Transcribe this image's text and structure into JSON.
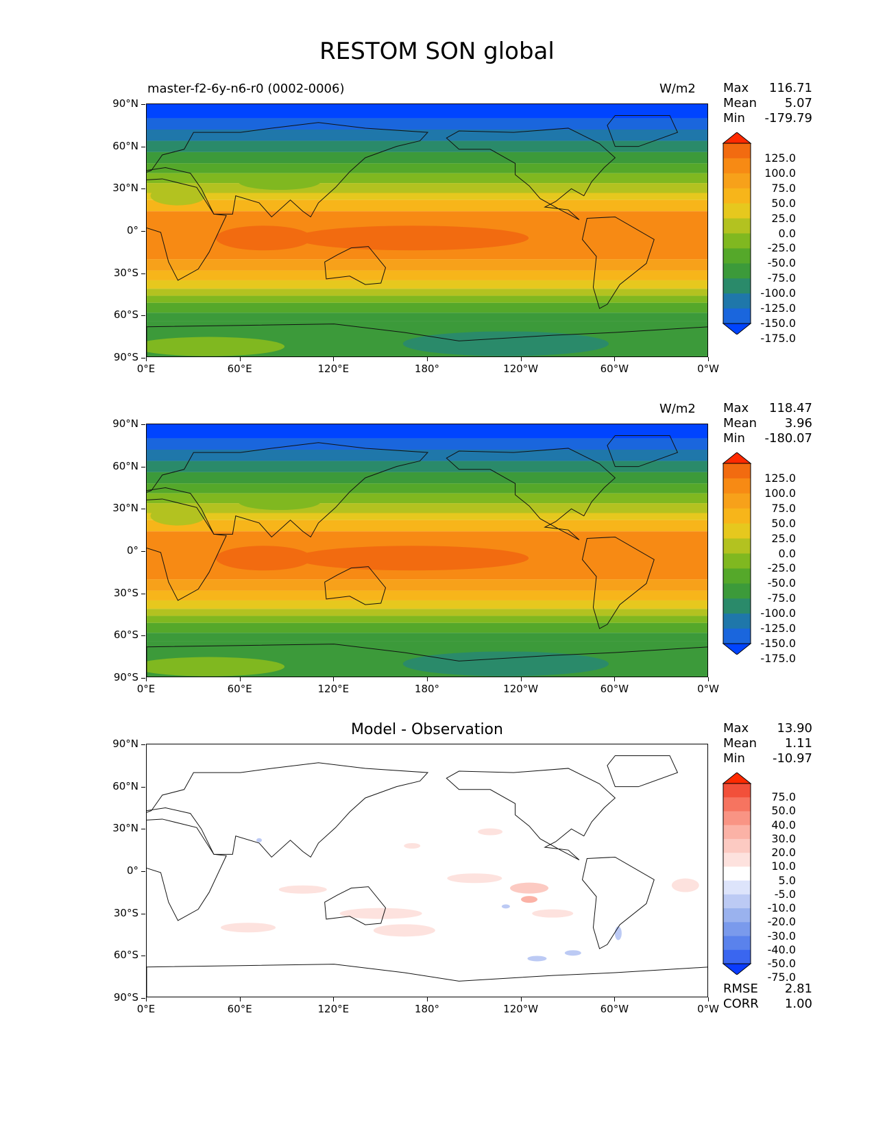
{
  "title": "RESTOM SON global",
  "y_ticks": [
    "90°N",
    "60°N",
    "30°N",
    "0°",
    "30°S",
    "60°S",
    "90°S"
  ],
  "x_ticks": [
    "0°E",
    "60°E",
    "120°E",
    "180°",
    "120°W",
    "60°W",
    "0°W"
  ],
  "panels": [
    {
      "left_title": "master-f2-6y-n6-r0 (0002-0006)",
      "right_title": "W/m2",
      "center_title": "",
      "stats": [
        {
          "label": "Max",
          "value": "116.71"
        },
        {
          "label": "Mean",
          "value": "5.07"
        },
        {
          "label": "Min",
          "value": "-179.79"
        }
      ],
      "colorbar_labels": [
        "125.0",
        "100.0",
        "75.0",
        "50.0",
        "25.0",
        "0.0",
        "-25.0",
        "-50.0",
        "-75.0",
        "-100.0",
        "-125.0",
        "-150.0",
        "-175.0"
      ]
    },
    {
      "left_title": "",
      "right_title": "W/m2",
      "center_title": "",
      "stats": [
        {
          "label": "Max",
          "value": "118.47"
        },
        {
          "label": "Mean",
          "value": "3.96"
        },
        {
          "label": "Min",
          "value": "-180.07"
        }
      ],
      "colorbar_labels": [
        "125.0",
        "100.0",
        "75.0",
        "50.0",
        "25.0",
        "0.0",
        "-25.0",
        "-50.0",
        "-75.0",
        "-100.0",
        "-125.0",
        "-150.0",
        "-175.0"
      ]
    },
    {
      "left_title": "",
      "right_title": "",
      "center_title": "Model - Observation",
      "stats": [
        {
          "label": "Max",
          "value": "13.90"
        },
        {
          "label": "Mean",
          "value": "1.11"
        },
        {
          "label": "Min",
          "value": "-10.97"
        }
      ],
      "colorbar_labels": [
        "75.0",
        "50.0",
        "40.0",
        "30.0",
        "20.0",
        "10.0",
        "5.0",
        "-5.0",
        "-10.0",
        "-20.0",
        "-30.0",
        "-40.0",
        "-50.0",
        "-75.0"
      ],
      "metrics": [
        {
          "label": "RMSE",
          "value": "2.81"
        },
        {
          "label": "CORR",
          "value": "1.00"
        }
      ]
    }
  ],
  "colors": {
    "field_scale": [
      "#0044ff",
      "#1a66dd",
      "#1f77aa",
      "#2a8a6a",
      "#3c9a3a",
      "#55a82a",
      "#80b820",
      "#b3c220",
      "#e6c81e",
      "#f7b51a",
      "#f7a11a",
      "#f78a14",
      "#f26b10",
      "#ff2a00"
    ],
    "diff_scale": [
      "#0a3cff",
      "#3a66f0",
      "#5a82ec",
      "#7a9aec",
      "#9ab2ee",
      "#bccaf4",
      "#dde4fb",
      "#ffffff",
      "#fde2de",
      "#fccac2",
      "#fbb2a6",
      "#f99484",
      "#f67460",
      "#f2503a",
      "#ff2a00"
    ]
  }
}
